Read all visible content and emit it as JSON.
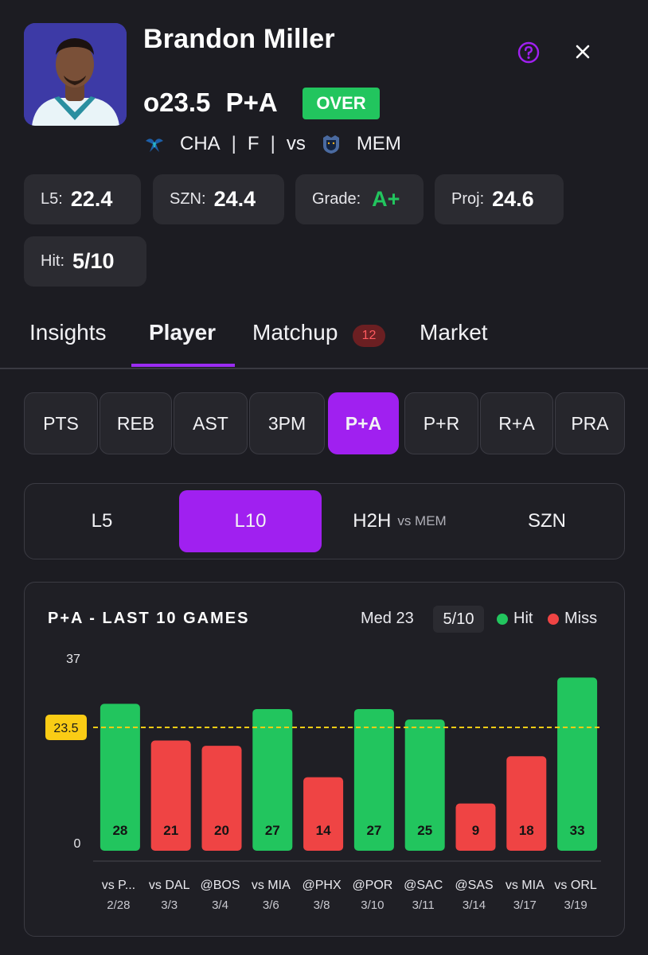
{
  "player": {
    "name": "Brandon Miller",
    "line": "o23.5",
    "market": "P+A",
    "pick": "OVER",
    "team": "CHA",
    "position": "F",
    "vs": "vs",
    "opponent": "MEM"
  },
  "stats": [
    {
      "label": "L5:",
      "value": "22.4"
    },
    {
      "label": "SZN:",
      "value": "24.4"
    },
    {
      "label": "Grade:",
      "value": "A+",
      "color": "#22c55e"
    },
    {
      "label": "Proj:",
      "value": "24.6"
    },
    {
      "label": "Hit:",
      "value": "5/10"
    }
  ],
  "tabs": {
    "items": [
      "Insights",
      "Player",
      "Matchup",
      "Market"
    ],
    "active": "Player",
    "matchup_badge": "12"
  },
  "stat_types": {
    "items": [
      "PTS",
      "REB",
      "AST",
      "3PM",
      "P+A",
      "P+R",
      "R+A",
      "PRA"
    ],
    "active": "P+A"
  },
  "ranges": {
    "items": [
      "L5",
      "L10",
      "H2H",
      "SZN"
    ],
    "h2h_sub": "vs MEM",
    "active": "L10"
  },
  "chart_panel": {
    "title": "P+A - LAST 10 GAMES",
    "median_label": "Med 23",
    "hit_count": "5/10",
    "legend_hit": "Hit",
    "legend_miss": "Miss"
  },
  "colors": {
    "accent": "#a020f0",
    "hit": "#22c55e",
    "miss": "#ef4444",
    "line": "#facc15",
    "background": "#1c1c22"
  },
  "icons": {
    "help": "question-circle-icon",
    "close": "close-icon",
    "team_logo": "hornets-logo-icon",
    "opponent_logo": "grizzlies-logo-icon"
  },
  "chart_data": {
    "type": "bar",
    "title": "P+A - LAST 10 GAMES",
    "categories": [
      "vs P...",
      "vs DAL",
      "@BOS",
      "vs MIA",
      "@PHX",
      "@POR",
      "@SAC",
      "@SAS",
      "vs MIA",
      "vs ORL"
    ],
    "dates": [
      "2/28",
      "3/3",
      "3/4",
      "3/6",
      "3/8",
      "3/10",
      "3/11",
      "3/14",
      "3/17",
      "3/19"
    ],
    "values": [
      28,
      21,
      20,
      27,
      14,
      27,
      25,
      9,
      18,
      33
    ],
    "threshold": 23.5,
    "threshold_label": "23.5",
    "ylim": [
      0,
      37
    ],
    "y_tick_labels": [
      "37",
      "0"
    ],
    "bar_colors": [
      "hit",
      "miss",
      "miss",
      "hit",
      "miss",
      "hit",
      "hit",
      "miss",
      "miss",
      "hit"
    ],
    "legend": "top-right"
  }
}
